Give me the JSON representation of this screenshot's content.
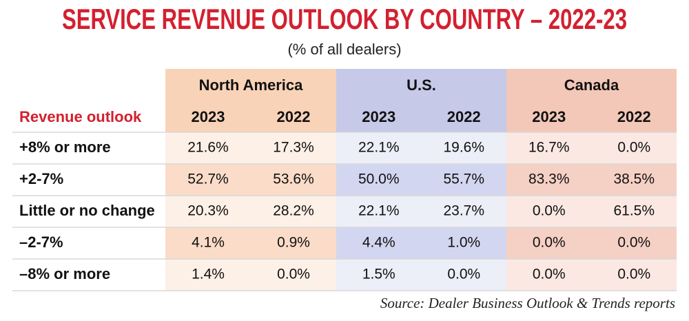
{
  "title": "SERVICE REVENUE OUTLOOK BY COUNTRY – 2022-23",
  "subtitle": "(% of all dealers)",
  "table": {
    "groups": [
      "North America",
      "U.S.",
      "Canada"
    ],
    "row_header": "Revenue outlook",
    "years": [
      "2023",
      "2022",
      "2023",
      "2022",
      "2023",
      "2022"
    ],
    "rows": [
      [
        "+8% or more",
        "21.6%",
        "17.3%",
        "22.1%",
        "19.6%",
        "16.7%",
        "0.0%"
      ],
      [
        "+2-7%",
        "52.7%",
        "53.6%",
        "50.0%",
        "55.7%",
        "83.3%",
        "38.5%"
      ],
      [
        "Little or no change",
        "20.3%",
        "28.2%",
        "22.1%",
        "23.7%",
        "0.0%",
        "61.5%"
      ],
      [
        "–2-7%",
        "4.1%",
        "0.9%",
        "4.4%",
        "1.0%",
        "0.0%",
        "0.0%"
      ],
      [
        "–8% or more",
        "1.4%",
        "0.0%",
        "1.5%",
        "0.0%",
        "0.0%",
        "0.0%"
      ]
    ]
  },
  "source": "Source: Dealer Business Outlook & Trends reports"
}
